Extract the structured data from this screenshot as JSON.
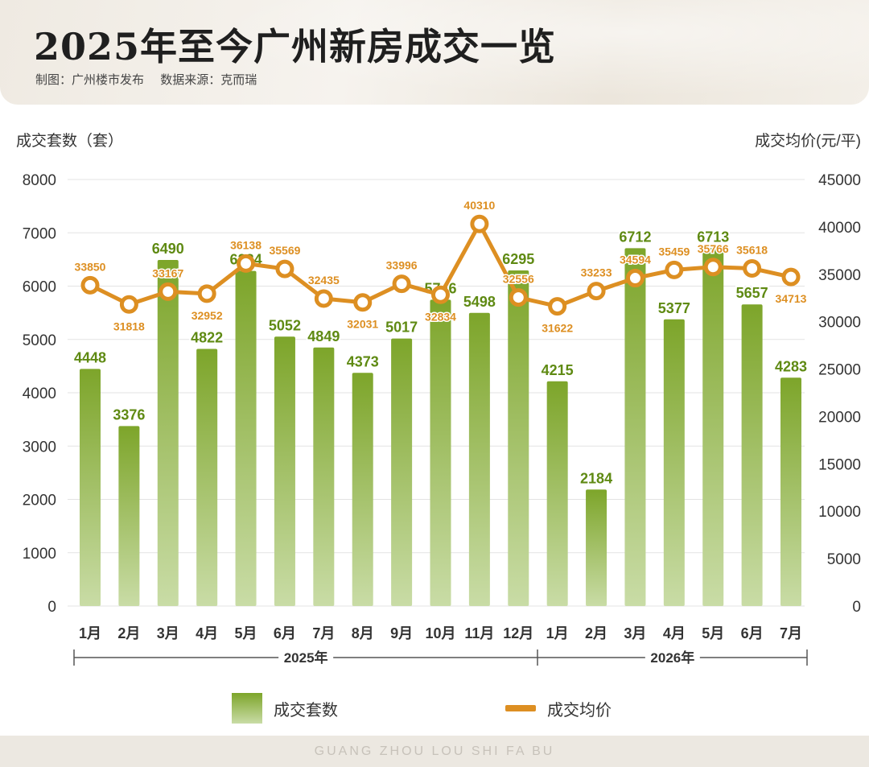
{
  "header": {
    "title": "2025年至今广州新房成交一览",
    "credit": "制图：广州楼市发布",
    "source": "数据来源：克而瑞"
  },
  "footer": {
    "text": "GUANG ZHOU LOU SHI FA BU"
  },
  "colors": {
    "bar_top": "#7da52a",
    "bar_bottom": "#c9dca6",
    "bar_label": "#5f8a13",
    "line": "#dd8f22",
    "line_label": "#dd8f22"
  },
  "chart_data": {
    "type": "bar",
    "categories": [
      "1月",
      "2月",
      "3月",
      "4月",
      "5月",
      "6月",
      "7月",
      "8月",
      "9月",
      "10月",
      "11月",
      "12月",
      "1月",
      "2月",
      "3月",
      "4月",
      "5月",
      "6月",
      "7月"
    ],
    "groups": [
      {
        "label": "2025年",
        "months": 12
      },
      {
        "label": "2026年",
        "months": 7
      }
    ],
    "series": [
      {
        "name": "成交套数",
        "type": "bar",
        "axis": "left",
        "values": [
          4448,
          3376,
          6490,
          4822,
          6284,
          5052,
          4849,
          4373,
          5017,
          5746,
          5498,
          6295,
          4215,
          2184,
          6712,
          5377,
          6713,
          5657,
          4283
        ]
      },
      {
        "name": "成交均价",
        "type": "line",
        "axis": "right",
        "values": [
          33850,
          31818,
          33167,
          32952,
          36138,
          35569,
          32435,
          32031,
          33996,
          32834,
          40310,
          32556,
          31622,
          33233,
          34594,
          35459,
          35766,
          35618,
          34713
        ]
      }
    ],
    "ylabel_left": "成交套数（套）",
    "ylabel_right": "成交均价(元/平)",
    "ylim_left": [
      0,
      8000
    ],
    "ylim_right": [
      0,
      45000
    ],
    "yticks_left": [
      0,
      1000,
      2000,
      3000,
      4000,
      5000,
      6000,
      7000,
      8000
    ],
    "yticks_right": [
      0,
      5000,
      10000,
      15000,
      20000,
      25000,
      30000,
      35000,
      40000,
      45000
    ],
    "grid": true,
    "legend": "bottom"
  }
}
